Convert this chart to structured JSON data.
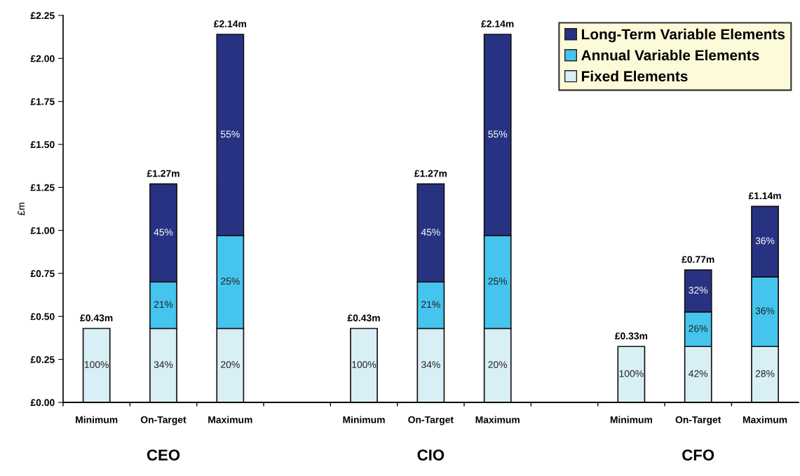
{
  "chart_data": {
    "type": "bar",
    "stacked": true,
    "ylabel": "£m",
    "categories": [
      "Minimum",
      "On-Target",
      "Maximum",
      null,
      "Minimum",
      "On-Target",
      "Maximum",
      null,
      "Minimum",
      "On-Target",
      "Maximum"
    ],
    "series": [
      {
        "name": "Fixed Elements",
        "color": "#d9eff6",
        "values": [
          0.43,
          0.43,
          0.43,
          null,
          0.43,
          0.43,
          0.43,
          null,
          0.325,
          0.325,
          0.325
        ]
      },
      {
        "name": "Annual Variable Elements",
        "color": "#45c4ee",
        "values": [
          null,
          0.27,
          0.54,
          null,
          null,
          0.27,
          0.54,
          null,
          null,
          0.2,
          0.405
        ]
      },
      {
        "name": "Long-Term Variable Elements",
        "color": "#283282",
        "values": [
          null,
          0.57,
          1.17,
          null,
          null,
          0.57,
          1.17,
          null,
          null,
          0.245,
          0.41
        ]
      }
    ],
    "totals": [
      "£0.43m",
      "£1.27m",
      "£2.14m",
      null,
      "£0.43m",
      "£1.27m",
      "£2.14m",
      null,
      "£0.33m",
      "£0.77m",
      "£1.14m"
    ],
    "annotations": [
      "CEO",
      "CIO",
      "CFO",
      "100%",
      "34%",
      "21%",
      "45%",
      "20%",
      "25%",
      "55%",
      "100%",
      "34%",
      "21%",
      "45%",
      "20%",
      "25%",
      "55%",
      "100%",
      "42%",
      "26%",
      "32%",
      "28%",
      "36%",
      "36%"
    ],
    "ylim": [
      0,
      2.25
    ],
    "yticks": [
      {
        "value": 0,
        "label": "£0.00"
      },
      {
        "value": 0.25,
        "label": "£0.25"
      },
      {
        "value": 0.5,
        "label": "£0.50"
      },
      {
        "value": 0.75,
        "label": "£0.75"
      },
      {
        "value": 1.0,
        "label": "£1.00"
      },
      {
        "value": 1.25,
        "label": "£1.25"
      },
      {
        "value": 1.5,
        "label": "£1.50"
      },
      {
        "value": 1.75,
        "label": "£1.75"
      },
      {
        "value": 2.0,
        "label": "£2.00"
      },
      {
        "value": 2.25,
        "label": "£2.25"
      }
    ],
    "grid": false,
    "legend": "top right"
  }
}
